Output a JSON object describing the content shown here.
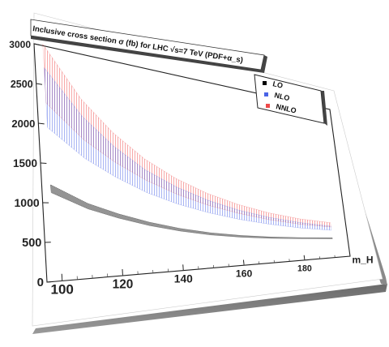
{
  "chart_data": {
    "type": "area",
    "title": "Inclusive cross section σ (fb) for LHC √s=7 TeV (PDF+α_s)",
    "xlabel": "m_H",
    "ylabel": "",
    "xlim": [
      95,
      195
    ],
    "ylim": [
      0,
      3000
    ],
    "x_ticks": [
      "100",
      "120",
      "140",
      "160",
      "180"
    ],
    "y_ticks": [
      "0",
      "500",
      "1000",
      "1500",
      "2000",
      "2500",
      "3000"
    ],
    "y_tick_text": [
      "0",
      "500",
      "1000",
      "1500",
      "2000",
      "2500",
      "3000"
    ],
    "x": [
      98,
      110,
      120,
      130,
      140,
      150,
      160,
      170,
      180,
      190
    ],
    "series": [
      {
        "name": "LO",
        "color": "#000000",
        "upper": [
          1230,
          1000,
          860,
          740,
          640,
          560,
          500,
          455,
          420,
          390
        ],
        "lower": [
          1130,
          925,
          800,
          690,
          600,
          525,
          470,
          430,
          400,
          372
        ]
      },
      {
        "name": "NLO",
        "color": "#4a63e6",
        "upper": [
          2720,
          2160,
          1800,
          1500,
          1270,
          1080,
          925,
          800,
          700,
          620
        ],
        "lower": [
          1960,
          1600,
          1370,
          1170,
          1010,
          880,
          770,
          680,
          600,
          540
        ]
      },
      {
        "name": "NNLO",
        "color": "#ee4a4a",
        "upper": [
          3020,
          2390,
          1990,
          1660,
          1400,
          1190,
          1020,
          880,
          770,
          690
        ],
        "lower": [
          2270,
          1850,
          1580,
          1350,
          1160,
          1000,
          870,
          760,
          670,
          605
        ]
      }
    ],
    "legend_position": "top-right",
    "grid": false
  }
}
